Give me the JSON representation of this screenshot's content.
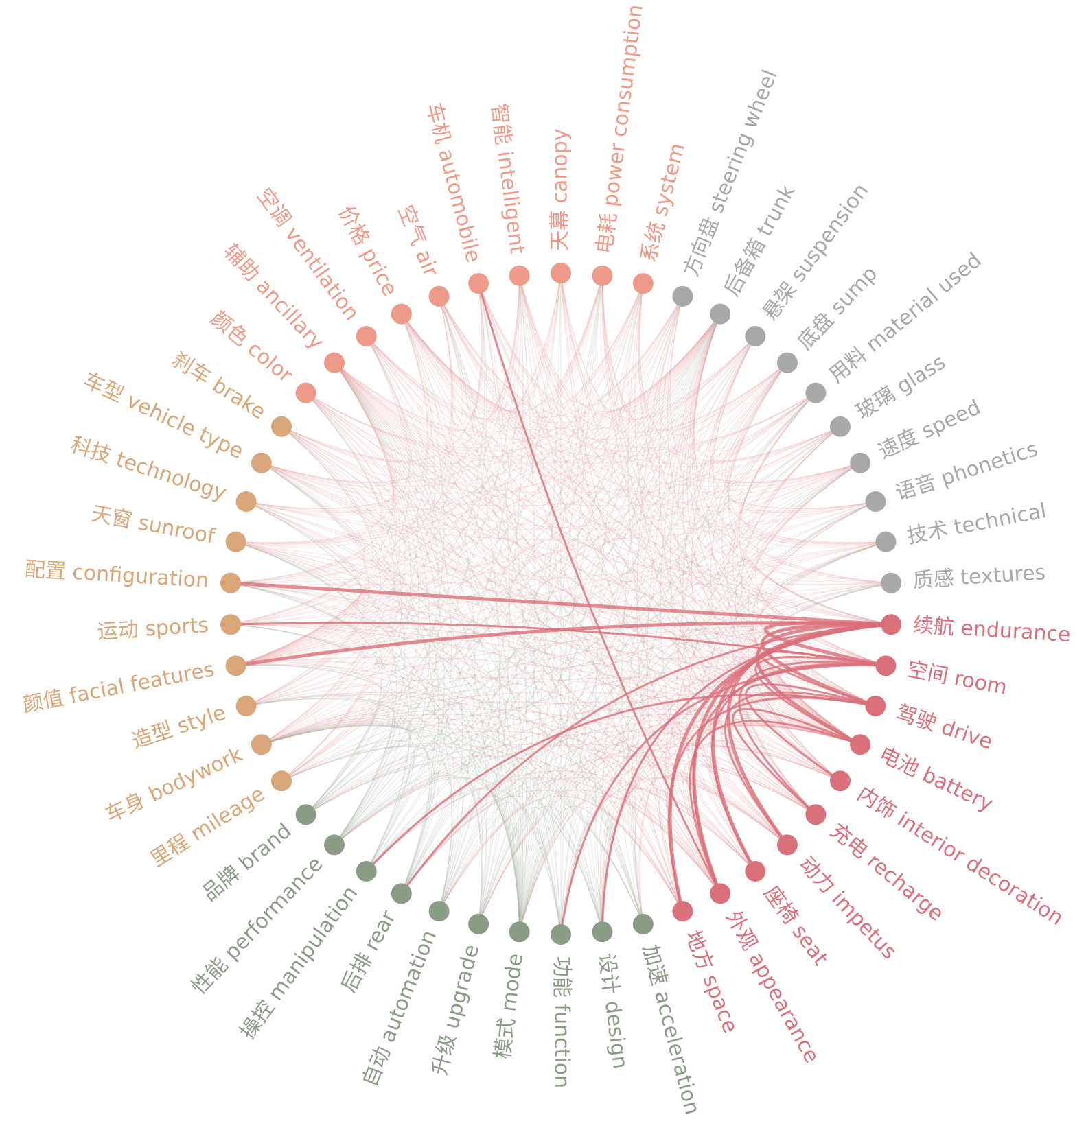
{
  "nodes": [
    {
      "label": "续航 endurance",
      "color": "#d9707a"
    },
    {
      "label": "空间 room",
      "color": "#d9707a"
    },
    {
      "label": "驾驶 drive",
      "color": "#d9707a"
    },
    {
      "label": "电池 battery",
      "color": "#d9707a"
    },
    {
      "label": "内饰 interior decoration",
      "color": "#d9707a"
    },
    {
      "label": "充电 recharge",
      "color": "#d9707a"
    },
    {
      "label": "动力 impetus",
      "color": "#d9707a"
    },
    {
      "label": "座椅 seat",
      "color": "#d9707a"
    },
    {
      "label": "外观 appearance",
      "color": "#d9707a"
    },
    {
      "label": "地方 space",
      "color": "#d9707a"
    },
    {
      "label": "加速 acceleration",
      "color": "#8a9c86"
    },
    {
      "label": "设计 design",
      "color": "#8a9c86"
    },
    {
      "label": "功能 function",
      "color": "#8a9c86"
    },
    {
      "label": "模式 mode",
      "color": "#8a9c86"
    },
    {
      "label": "升级 upgrade",
      "color": "#8a9c86"
    },
    {
      "label": "自动 automation",
      "color": "#8a9c86"
    },
    {
      "label": "后排 rear",
      "color": "#8a9c86"
    },
    {
      "label": "操控 manipulation",
      "color": "#8a9c86"
    },
    {
      "label": "性能 performance",
      "color": "#8a9c86"
    },
    {
      "label": "品牌 brand",
      "color": "#8a9c86"
    },
    {
      "label": "里程 mileage",
      "color": "#d8a679"
    },
    {
      "label": "车身 bodywork",
      "color": "#d8a679"
    },
    {
      "label": "造型 style",
      "color": "#d8a679"
    },
    {
      "label": "颜值 facial features",
      "color": "#d8a679"
    },
    {
      "label": "运动 sports",
      "color": "#d8a679"
    },
    {
      "label": "配置 configuration",
      "color": "#d8a679"
    },
    {
      "label": "天窗 sunroof",
      "color": "#d8a679"
    },
    {
      "label": "科技 technology",
      "color": "#d8a679"
    },
    {
      "label": "车型 vehicle type",
      "color": "#d8a679"
    },
    {
      "label": "刹车 brake",
      "color": "#d8a679"
    },
    {
      "label": "颜色 color",
      "color": "#ee9a88"
    },
    {
      "label": "辅助 ancillary",
      "color": "#ee9a88"
    },
    {
      "label": "空调 ventilation",
      "color": "#ee9a88"
    },
    {
      "label": "价格 price",
      "color": "#ee9a88"
    },
    {
      "label": "空气 air",
      "color": "#ee9a88"
    },
    {
      "label": "车机 automobile",
      "color": "#ee9a88"
    },
    {
      "label": "智能 intelligent",
      "color": "#ee9a88"
    },
    {
      "label": "天幕 canopy",
      "color": "#ee9a88"
    },
    {
      "label": "电耗 power consumption",
      "color": "#ee9a88"
    },
    {
      "label": "系统 system",
      "color": "#ee9a88"
    },
    {
      "label": "方向盘 steering wheel",
      "color": "#a8a8a8"
    },
    {
      "label": "后备箱 trunk",
      "color": "#a8a8a8"
    },
    {
      "label": "悬架 suspension",
      "color": "#a8a8a8"
    },
    {
      "label": "底盘 sump",
      "color": "#a8a8a8"
    },
    {
      "label": "用料 material used",
      "color": "#a8a8a8"
    },
    {
      "label": "玻璃 glass",
      "color": "#a8a8a8"
    },
    {
      "label": "速度 speed",
      "color": "#a8a8a8"
    },
    {
      "label": "语音 phonetics",
      "color": "#a8a8a8"
    },
    {
      "label": "技术 technical",
      "color": "#a8a8a8"
    },
    {
      "label": "质感 textures",
      "color": "#a8a8a8"
    }
  ],
  "edges": [
    [
      0,
      1
    ],
    [
      0,
      2
    ],
    [
      0,
      3
    ],
    [
      0,
      6
    ],
    [
      0,
      7
    ],
    [
      0,
      8
    ],
    [
      0,
      9
    ],
    [
      0,
      23
    ],
    [
      0,
      25
    ],
    [
      1,
      2
    ],
    [
      1,
      3
    ],
    [
      1,
      5
    ],
    [
      1,
      7
    ],
    [
      1,
      8
    ],
    [
      2,
      4
    ],
    [
      2,
      6
    ],
    [
      2,
      9
    ],
    [
      3,
      5
    ],
    [
      3,
      8
    ],
    [
      35,
      8
    ],
    [
      1,
      24
    ],
    [
      0,
      11
    ],
    [
      0,
      16
    ],
    [
      1,
      12
    ],
    [
      2,
      17
    ]
  ]
}
